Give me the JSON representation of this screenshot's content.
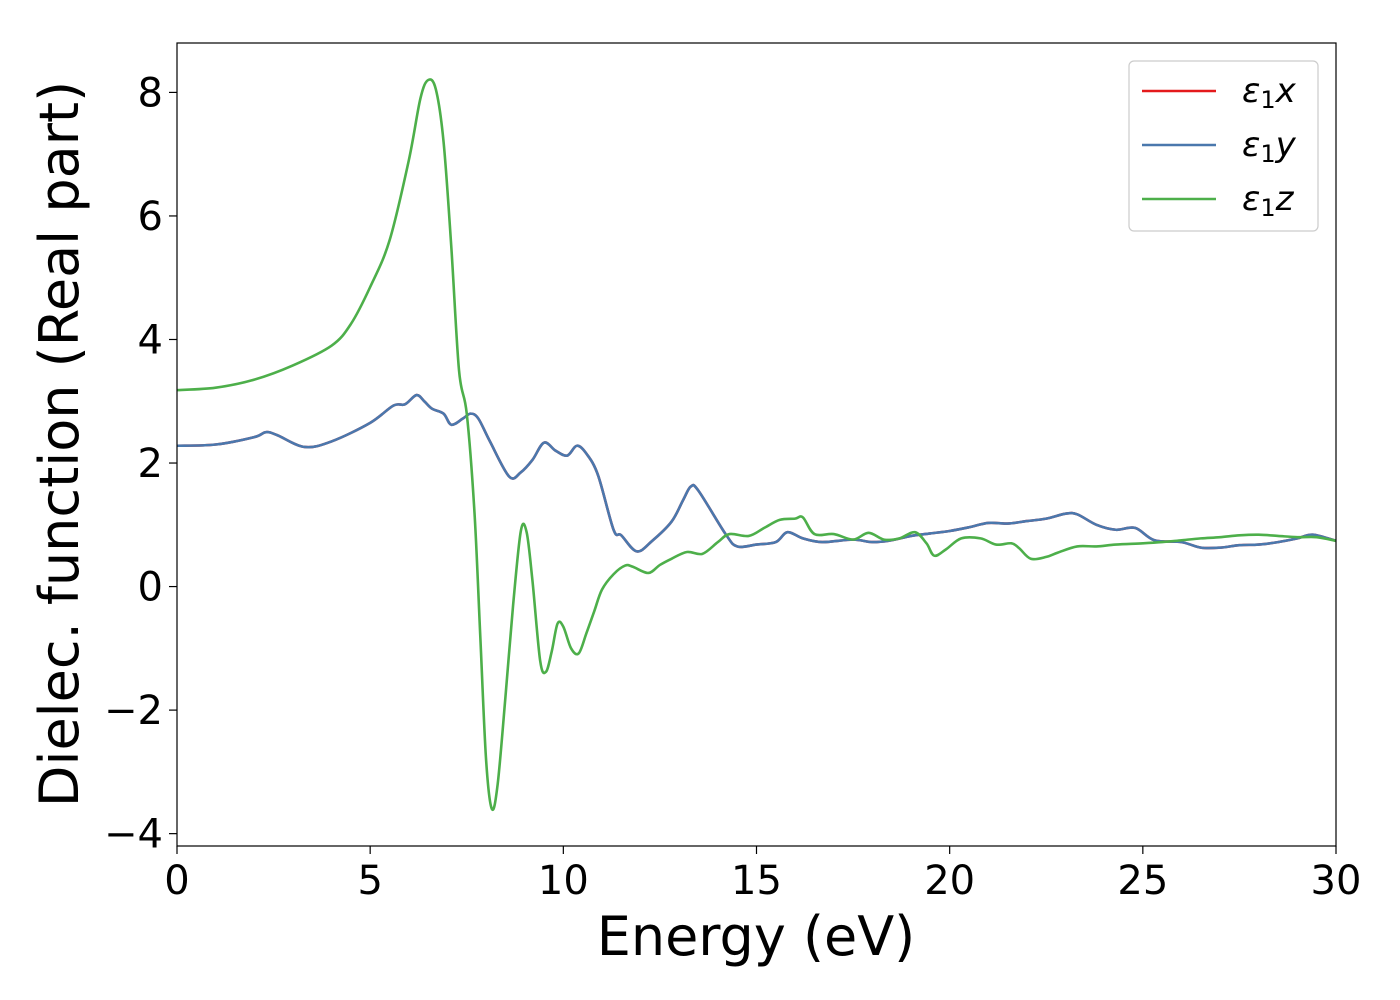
{
  "chart_data": {
    "type": "line",
    "title": "",
    "xlabel": "Energy (eV)",
    "ylabel": "Dielec. function (Real part)",
    "xlim": [
      0,
      30
    ],
    "ylim": [
      -4.2,
      8.8
    ],
    "xticks": [
      0,
      5,
      10,
      15,
      20,
      25,
      30
    ],
    "yticks": [
      -4,
      -2,
      0,
      2,
      4,
      6,
      8
    ],
    "xtick_labels": [
      "0",
      "5",
      "10",
      "15",
      "20",
      "25",
      "30"
    ],
    "ytick_labels": [
      "−4",
      "−2",
      "0",
      "2",
      "4",
      "6",
      "8"
    ],
    "grid": false,
    "legend_position": "top-right",
    "series": [
      {
        "name": "x",
        "legend_symbol": "ε",
        "legend_sub": "1",
        "legend_var": "x",
        "color": "#e41a1c",
        "points": [
          [
            0,
            2.28
          ],
          [
            1,
            2.3
          ],
          [
            2,
            2.42
          ],
          [
            2.3,
            2.5
          ],
          [
            2.6,
            2.45
          ],
          [
            3.3,
            2.26
          ],
          [
            4,
            2.35
          ],
          [
            5,
            2.65
          ],
          [
            5.6,
            2.93
          ],
          [
            5.9,
            2.95
          ],
          [
            6.2,
            3.1
          ],
          [
            6.4,
            3.0
          ],
          [
            6.6,
            2.88
          ],
          [
            6.9,
            2.8
          ],
          [
            7.1,
            2.62
          ],
          [
            7.4,
            2.72
          ],
          [
            7.6,
            2.8
          ],
          [
            7.8,
            2.72
          ],
          [
            8.1,
            2.35
          ],
          [
            8.6,
            1.78
          ],
          [
            8.9,
            1.85
          ],
          [
            9.2,
            2.05
          ],
          [
            9.5,
            2.33
          ],
          [
            9.8,
            2.2
          ],
          [
            10.1,
            2.12
          ],
          [
            10.35,
            2.28
          ],
          [
            10.6,
            2.15
          ],
          [
            10.9,
            1.8
          ],
          [
            11.3,
            0.92
          ],
          [
            11.5,
            0.83
          ],
          [
            11.9,
            0.57
          ],
          [
            12.3,
            0.74
          ],
          [
            12.8,
            1.05
          ],
          [
            13.1,
            1.4
          ],
          [
            13.3,
            1.62
          ],
          [
            13.5,
            1.55
          ],
          [
            14.2,
            0.85
          ],
          [
            14.5,
            0.65
          ],
          [
            15,
            0.68
          ],
          [
            15.5,
            0.72
          ],
          [
            15.8,
            0.88
          ],
          [
            16.2,
            0.78
          ],
          [
            16.7,
            0.72
          ],
          [
            17.5,
            0.76
          ],
          [
            18,
            0.72
          ],
          [
            18.5,
            0.75
          ],
          [
            19,
            0.82
          ],
          [
            19.5,
            0.86
          ],
          [
            20,
            0.9
          ],
          [
            20.5,
            0.96
          ],
          [
            21,
            1.03
          ],
          [
            21.5,
            1.02
          ],
          [
            22,
            1.06
          ],
          [
            22.5,
            1.1
          ],
          [
            23,
            1.18
          ],
          [
            23.3,
            1.17
          ],
          [
            23.8,
            1.0
          ],
          [
            24.3,
            0.92
          ],
          [
            24.8,
            0.95
          ],
          [
            25.3,
            0.75
          ],
          [
            26,
            0.72
          ],
          [
            26.5,
            0.63
          ],
          [
            27,
            0.63
          ],
          [
            27.5,
            0.67
          ],
          [
            28,
            0.68
          ],
          [
            28.5,
            0.72
          ],
          [
            29,
            0.78
          ],
          [
            29.4,
            0.84
          ],
          [
            30,
            0.74
          ]
        ]
      },
      {
        "name": "y",
        "legend_symbol": "ε",
        "legend_sub": "1",
        "legend_var": "y",
        "color": "#4a78ad",
        "points": [
          [
            0,
            2.28
          ],
          [
            1,
            2.3
          ],
          [
            2,
            2.42
          ],
          [
            2.3,
            2.5
          ],
          [
            2.6,
            2.45
          ],
          [
            3.3,
            2.26
          ],
          [
            4,
            2.35
          ],
          [
            5,
            2.65
          ],
          [
            5.6,
            2.93
          ],
          [
            5.9,
            2.95
          ],
          [
            6.2,
            3.1
          ],
          [
            6.4,
            3.0
          ],
          [
            6.6,
            2.88
          ],
          [
            6.9,
            2.8
          ],
          [
            7.1,
            2.62
          ],
          [
            7.4,
            2.72
          ],
          [
            7.6,
            2.8
          ],
          [
            7.8,
            2.72
          ],
          [
            8.1,
            2.35
          ],
          [
            8.6,
            1.78
          ],
          [
            8.9,
            1.85
          ],
          [
            9.2,
            2.05
          ],
          [
            9.5,
            2.33
          ],
          [
            9.8,
            2.2
          ],
          [
            10.1,
            2.12
          ],
          [
            10.35,
            2.28
          ],
          [
            10.6,
            2.15
          ],
          [
            10.9,
            1.8
          ],
          [
            11.3,
            0.92
          ],
          [
            11.5,
            0.83
          ],
          [
            11.9,
            0.57
          ],
          [
            12.3,
            0.74
          ],
          [
            12.8,
            1.05
          ],
          [
            13.1,
            1.4
          ],
          [
            13.3,
            1.62
          ],
          [
            13.5,
            1.55
          ],
          [
            14.2,
            0.85
          ],
          [
            14.5,
            0.65
          ],
          [
            15,
            0.68
          ],
          [
            15.5,
            0.72
          ],
          [
            15.8,
            0.88
          ],
          [
            16.2,
            0.78
          ],
          [
            16.7,
            0.72
          ],
          [
            17.5,
            0.76
          ],
          [
            18,
            0.72
          ],
          [
            18.5,
            0.75
          ],
          [
            19,
            0.82
          ],
          [
            19.5,
            0.86
          ],
          [
            20,
            0.9
          ],
          [
            20.5,
            0.96
          ],
          [
            21,
            1.03
          ],
          [
            21.5,
            1.02
          ],
          [
            22,
            1.06
          ],
          [
            22.5,
            1.1
          ],
          [
            23,
            1.18
          ],
          [
            23.3,
            1.17
          ],
          [
            23.8,
            1.0
          ],
          [
            24.3,
            0.92
          ],
          [
            24.8,
            0.95
          ],
          [
            25.3,
            0.75
          ],
          [
            26,
            0.72
          ],
          [
            26.5,
            0.63
          ],
          [
            27,
            0.63
          ],
          [
            27.5,
            0.67
          ],
          [
            28,
            0.68
          ],
          [
            28.5,
            0.72
          ],
          [
            29,
            0.78
          ],
          [
            29.4,
            0.84
          ],
          [
            30,
            0.74
          ]
        ]
      },
      {
        "name": "z",
        "legend_symbol": "ε",
        "legend_sub": "1",
        "legend_var": "z",
        "color": "#4daf4a",
        "points": [
          [
            0,
            3.18
          ],
          [
            1,
            3.22
          ],
          [
            2,
            3.35
          ],
          [
            3,
            3.58
          ],
          [
            4,
            3.9
          ],
          [
            4.5,
            4.25
          ],
          [
            5,
            4.85
          ],
          [
            5.5,
            5.6
          ],
          [
            6,
            6.9
          ],
          [
            6.3,
            7.9
          ],
          [
            6.5,
            8.2
          ],
          [
            6.7,
            8.05
          ],
          [
            6.9,
            7.2
          ],
          [
            7.1,
            5.5
          ],
          [
            7.3,
            3.5
          ],
          [
            7.5,
            2.8
          ],
          [
            7.7,
            1.2
          ],
          [
            7.85,
            -0.8
          ],
          [
            8,
            -2.8
          ],
          [
            8.15,
            -3.6
          ],
          [
            8.3,
            -3.2
          ],
          [
            8.5,
            -1.8
          ],
          [
            8.7,
            -0.3
          ],
          [
            8.9,
            0.9
          ],
          [
            9.05,
            0.88
          ],
          [
            9.2,
            0.1
          ],
          [
            9.4,
            -1.2
          ],
          [
            9.55,
            -1.38
          ],
          [
            9.7,
            -1.05
          ],
          [
            9.85,
            -0.6
          ],
          [
            10,
            -0.65
          ],
          [
            10.2,
            -1.0
          ],
          [
            10.4,
            -1.08
          ],
          [
            10.6,
            -0.75
          ],
          [
            10.8,
            -0.4
          ],
          [
            11,
            -0.05
          ],
          [
            11.3,
            0.2
          ],
          [
            11.6,
            0.34
          ],
          [
            11.8,
            0.32
          ],
          [
            12.2,
            0.22
          ],
          [
            12.5,
            0.35
          ],
          [
            12.8,
            0.45
          ],
          [
            13.2,
            0.56
          ],
          [
            13.6,
            0.53
          ],
          [
            14,
            0.72
          ],
          [
            14.3,
            0.85
          ],
          [
            14.8,
            0.82
          ],
          [
            15.2,
            0.95
          ],
          [
            15.6,
            1.08
          ],
          [
            16,
            1.1
          ],
          [
            16.2,
            1.12
          ],
          [
            16.5,
            0.85
          ],
          [
            17,
            0.85
          ],
          [
            17.5,
            0.76
          ],
          [
            17.9,
            0.87
          ],
          [
            18.3,
            0.76
          ],
          [
            18.7,
            0.78
          ],
          [
            19.1,
            0.88
          ],
          [
            19.4,
            0.7
          ],
          [
            19.6,
            0.5
          ],
          [
            19.9,
            0.6
          ],
          [
            20.3,
            0.78
          ],
          [
            20.8,
            0.78
          ],
          [
            21.2,
            0.68
          ],
          [
            21.6,
            0.7
          ],
          [
            21.8,
            0.62
          ],
          [
            22.1,
            0.45
          ],
          [
            22.5,
            0.48
          ],
          [
            22.8,
            0.55
          ],
          [
            23.3,
            0.65
          ],
          [
            23.8,
            0.65
          ],
          [
            24.3,
            0.68
          ],
          [
            25,
            0.7
          ],
          [
            25.5,
            0.72
          ],
          [
            26,
            0.75
          ],
          [
            26.5,
            0.78
          ],
          [
            27,
            0.8
          ],
          [
            27.5,
            0.83
          ],
          [
            28,
            0.84
          ],
          [
            28.5,
            0.82
          ],
          [
            29,
            0.8
          ],
          [
            29.5,
            0.8
          ],
          [
            30,
            0.74
          ]
        ]
      }
    ]
  }
}
